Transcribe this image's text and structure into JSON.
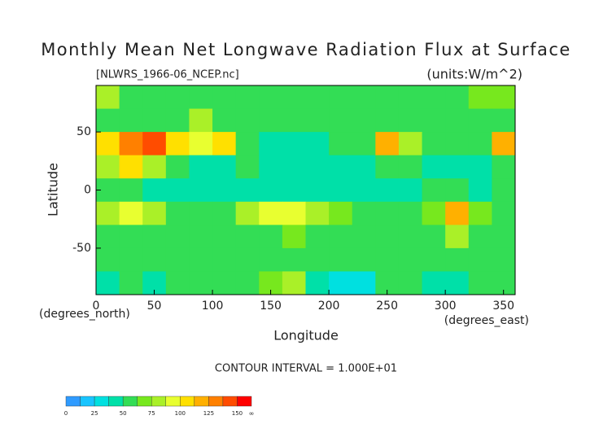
{
  "chart_data": {
    "type": "contour",
    "title": "Monthly Mean Net Longwave Radiation Flux at Surface",
    "subtitle": "[NLWRS_1966-06_NCEP.nc]",
    "units": "(units:W/m^2)",
    "x_label": "Longitude",
    "x_unit": "(degrees_east)",
    "y_label": "Latitude",
    "y_unit": "(degrees_north)",
    "note": "CONTOUR INTERVAL = 1.000E+01",
    "xlim": [
      0,
      360
    ],
    "ylim": [
      -90,
      90
    ],
    "xticks": [
      0,
      50,
      100,
      150,
      200,
      250,
      300,
      350
    ],
    "yticks": [
      -50,
      0,
      50
    ],
    "z": [
      [
        75,
        60,
        55,
        60,
        60,
        55,
        55,
        60,
        55,
        60,
        55,
        55,
        60,
        60,
        55,
        60,
        65,
        70
      ],
      [
        55,
        55,
        60,
        60,
        75,
        60,
        55,
        50,
        50,
        55,
        60,
        50,
        55,
        55,
        50,
        55,
        60,
        60
      ],
      [
        100,
        130,
        140,
        110,
        90,
        100,
        60,
        45,
        40,
        45,
        50,
        55,
        120,
        80,
        55,
        50,
        55,
        120
      ],
      [
        80,
        100,
        80,
        55,
        45,
        45,
        55,
        45,
        40,
        40,
        40,
        45,
        60,
        55,
        45,
        40,
        40,
        50
      ],
      [
        55,
        50,
        45,
        45,
        40,
        40,
        40,
        40,
        40,
        40,
        40,
        40,
        40,
        45,
        50,
        50,
        45,
        50
      ],
      [
        75,
        90,
        85,
        60,
        60,
        60,
        85,
        90,
        90,
        80,
        65,
        60,
        55,
        60,
        70,
        120,
        65,
        60
      ],
      [
        55,
        55,
        60,
        60,
        55,
        55,
        60,
        60,
        70,
        60,
        55,
        55,
        55,
        60,
        60,
        80,
        60,
        55
      ],
      [
        60,
        55,
        55,
        60,
        60,
        55,
        55,
        60,
        55,
        60,
        60,
        55,
        55,
        55,
        55,
        60,
        55,
        55
      ],
      [
        40,
        50,
        45,
        55,
        60,
        55,
        50,
        70,
        80,
        45,
        35,
        30,
        60,
        55,
        40,
        45,
        60,
        50
      ]
    ],
    "colorbar": {
      "levels": [
        0,
        12.5,
        25,
        37.5,
        50,
        62.5,
        75,
        87.5,
        100,
        112.5,
        125,
        137.5,
        150
      ],
      "colors": [
        "#2f9bff",
        "#18c4ff",
        "#00e0e0",
        "#00e0a8",
        "#33dd55",
        "#77e81e",
        "#aaf028",
        "#e8ff30",
        "#ffe000",
        "#ffb000",
        "#ff8000",
        "#ff4c00",
        "#ff0000"
      ],
      "ticks": [
        0,
        25,
        50,
        75,
        100,
        125,
        150
      ],
      "end_label": "∞"
    }
  }
}
